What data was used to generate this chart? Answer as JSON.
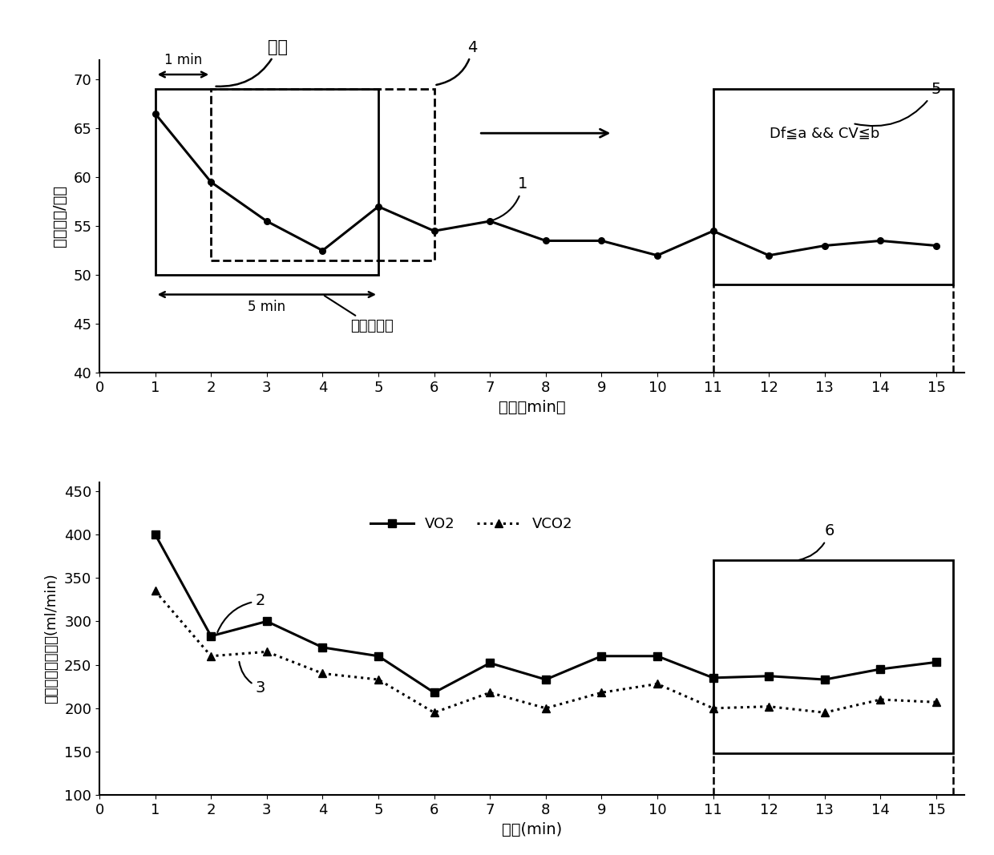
{
  "hr_x": [
    1,
    2,
    3,
    4,
    5,
    6,
    7,
    8,
    9,
    10,
    11,
    12,
    13,
    14,
    15
  ],
  "hr_y": [
    66.5,
    59.5,
    55.5,
    52.5,
    57.0,
    54.5,
    55.5,
    53.5,
    53.5,
    52.0,
    54.5,
    52.0,
    53.0,
    53.5,
    53.0
  ],
  "vo2_x": [
    1,
    2,
    3,
    4,
    5,
    6,
    7,
    8,
    9,
    10,
    11,
    12,
    13,
    14,
    15
  ],
  "vo2_y": [
    400,
    283,
    300,
    270,
    260,
    218,
    252,
    233,
    260,
    260,
    235,
    237,
    233,
    245,
    253
  ],
  "vco2_x": [
    1,
    2,
    3,
    4,
    5,
    6,
    7,
    8,
    9,
    10,
    11,
    12,
    13,
    14,
    15
  ],
  "vco2_y": [
    335,
    260,
    265,
    240,
    233,
    195,
    218,
    200,
    218,
    228,
    200,
    202,
    195,
    210,
    207
  ],
  "hr_ylabel": "心率（次/分）",
  "hr_xlabel": "时间（min）",
  "resp_ylabel": "呼吸气体交换参数(ml/min)",
  "resp_xlabel": "时间(min)",
  "hr_ylim": [
    40,
    72
  ],
  "hr_yticks": [
    40,
    45,
    50,
    55,
    60,
    65,
    70
  ],
  "resp_ylim": [
    100,
    460
  ],
  "resp_yticks": [
    100,
    150,
    200,
    250,
    300,
    350,
    400,
    450
  ],
  "xlim": [
    0,
    15.5
  ],
  "xticks": [
    0,
    1,
    2,
    3,
    4,
    5,
    6,
    7,
    8,
    9,
    10,
    11,
    12,
    13,
    14,
    15
  ],
  "legend_vo2": "VO2",
  "legend_vco2": "VCO2",
  "annotation_1": "1",
  "annotation_2": "2",
  "annotation_3": "3",
  "annotation_4": "4",
  "annotation_5": "5",
  "annotation_6": "6",
  "step_label": "步长",
  "window_label": "时间窗长度",
  "label_1min": "1 min",
  "label_5min": "5 min",
  "condition_label": "Df≦a && CV≦b"
}
